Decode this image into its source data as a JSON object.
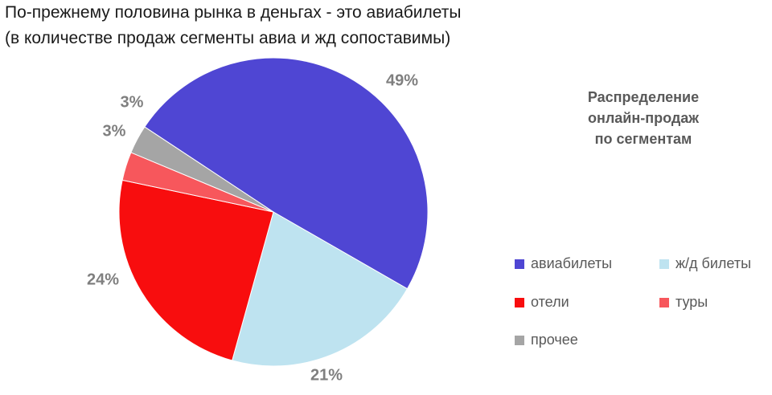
{
  "page": {
    "title_line1": "По-прежнему половина рынка в деньгах - это авиабилеты",
    "title_line2": "(в количестве продаж сегменты авиа и жд сопоставимы)"
  },
  "chart_data": {
    "type": "pie",
    "title_lines": [
      "Распределение",
      "онлайн-продаж",
      "по сегментам"
    ],
    "legend_position": "right",
    "slices": [
      {
        "name": "авиабилеты",
        "value": 49,
        "label": "49%",
        "color": "#4F46D3"
      },
      {
        "name": "ж/д билеты",
        "value": 21,
        "label": "21%",
        "color": "#BEE3F0"
      },
      {
        "name": "отели",
        "value": 24,
        "label": "24%",
        "color": "#F80D0E"
      },
      {
        "name": "туры",
        "value": 3,
        "label": "3%",
        "color": "#F7575C"
      },
      {
        "name": "прочее",
        "value": 3,
        "label": "3%",
        "color": "#A5A5A5"
      }
    ]
  }
}
